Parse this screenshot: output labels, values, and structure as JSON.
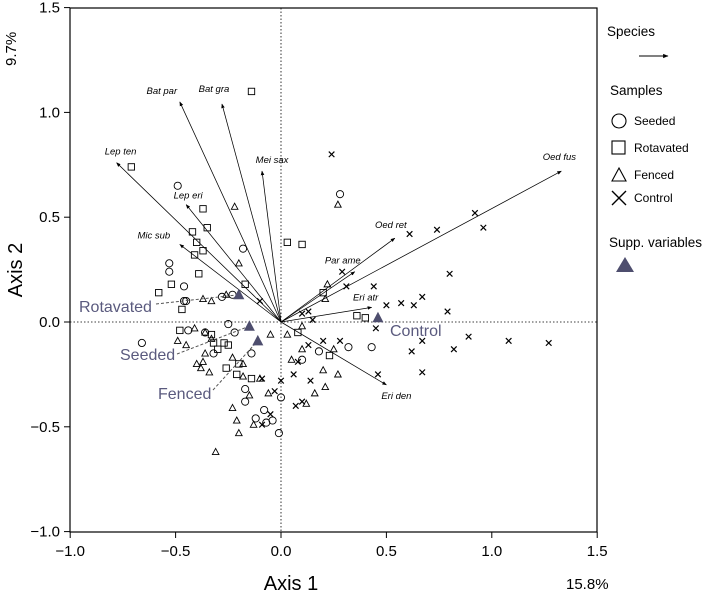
{
  "chart_data": {
    "type": "scatter",
    "subtype": "ordination-biplot",
    "xlabel": "Axis 1",
    "ylabel": "Axis 2",
    "x_variance": "15.8%",
    "y_variance": "9.7%",
    "xlim": [
      -1.0,
      1.5
    ],
    "ylim": [
      -1.0,
      1.5
    ],
    "xticks": [
      -1.0,
      -0.5,
      0.0,
      0.5,
      1.0,
      1.5
    ],
    "yticks": [
      -1.0,
      -0.5,
      0.0,
      0.5,
      1.0,
      1.5
    ],
    "xtick_labels": [
      "−1.0",
      "−0.5",
      "0.0",
      "0.5",
      "1.0",
      "1.5"
    ],
    "ytick_labels": [
      "−1.0",
      "−0.5",
      "0.0",
      "0.5",
      "1.0",
      "1.5"
    ],
    "legend": {
      "species_title": "Species",
      "samples_title": "Samples",
      "supp_title": "Supp. variables",
      "entries": [
        {
          "label": "Seeded",
          "marker": "circle"
        },
        {
          "label": "Rotavated",
          "marker": "square"
        },
        {
          "label": "Fenced",
          "marker": "triangle"
        },
        {
          "label": "Control",
          "marker": "cross"
        }
      ]
    },
    "species": [
      {
        "name": "Bat par",
        "x": -0.48,
        "y": 1.05
      },
      {
        "name": "Bat gra",
        "x": -0.28,
        "y": 1.04
      },
      {
        "name": "Lep ten",
        "x": -0.78,
        "y": 0.76
      },
      {
        "name": "Mei sax",
        "x": -0.09,
        "y": 0.72
      },
      {
        "name": "Oed fus",
        "x": 1.33,
        "y": 0.72
      },
      {
        "name": "Lep eri",
        "x": -0.45,
        "y": 0.56
      },
      {
        "name": "Mic sub",
        "x": -0.48,
        "y": 0.37
      },
      {
        "name": "Oed ret",
        "x": 0.54,
        "y": 0.4
      },
      {
        "name": "Par ame",
        "x": 0.35,
        "y": 0.24
      },
      {
        "name": "Eri atr",
        "x": 0.43,
        "y": 0.07
      },
      {
        "name": "Eri den",
        "x": 0.5,
        "y": -0.3
      }
    ],
    "supplementary": [
      {
        "name": "Rotavated",
        "x": -0.2,
        "y": 0.13
      },
      {
        "name": "Control",
        "x": 0.46,
        "y": 0.02
      },
      {
        "name": "Seeded",
        "x": -0.15,
        "y": -0.02
      },
      {
        "name": "Fenced",
        "x": -0.11,
        "y": -0.09
      }
    ],
    "samples": {
      "seeded": [
        [
          -0.49,
          0.65
        ],
        [
          -0.53,
          0.28
        ],
        [
          -0.53,
          0.24
        ],
        [
          -0.46,
          0.17
        ],
        [
          -0.45,
          0.1
        ],
        [
          -0.46,
          0.1
        ],
        [
          -0.28,
          0.12
        ],
        [
          -0.23,
          0.13
        ],
        [
          -0.66,
          -0.1
        ],
        [
          -0.44,
          -0.04
        ],
        [
          -0.36,
          -0.05
        ],
        [
          -0.32,
          -0.15
        ],
        [
          -0.25,
          -0.01
        ],
        [
          -0.22,
          -0.05
        ],
        [
          -0.14,
          -0.15
        ],
        [
          -0.17,
          -0.32
        ],
        [
          -0.17,
          -0.38
        ],
        [
          -0.12,
          -0.46
        ],
        [
          -0.08,
          -0.42
        ],
        [
          -0.07,
          -0.48
        ],
        [
          0.0,
          -0.36
        ],
        [
          -0.04,
          -0.47
        ],
        [
          -0.01,
          -0.53
        ],
        [
          0.1,
          -0.18
        ],
        [
          0.18,
          -0.14
        ],
        [
          0.32,
          -0.12
        ],
        [
          0.43,
          -0.12
        ],
        [
          0.28,
          0.61
        ],
        [
          -0.18,
          0.35
        ]
      ],
      "rotavated": [
        [
          -0.71,
          0.74
        ],
        [
          -0.14,
          1.1
        ],
        [
          -0.37,
          0.54
        ],
        [
          -0.35,
          0.45
        ],
        [
          -0.42,
          0.43
        ],
        [
          -0.4,
          0.38
        ],
        [
          -0.37,
          0.34
        ],
        [
          -0.41,
          0.32
        ],
        [
          -0.39,
          0.23
        ],
        [
          -0.52,
          0.18
        ],
        [
          -0.58,
          0.14
        ],
        [
          -0.47,
          0.06
        ],
        [
          -0.48,
          -0.04
        ],
        [
          -0.33,
          -0.06
        ],
        [
          -0.32,
          -0.1
        ],
        [
          -0.27,
          -0.1
        ],
        [
          -0.25,
          -0.11
        ],
        [
          -0.3,
          -0.13
        ],
        [
          -0.2,
          -0.2
        ],
        [
          -0.26,
          -0.22
        ],
        [
          -0.21,
          -0.25
        ],
        [
          -0.14,
          -0.27
        ],
        [
          -0.17,
          0.18
        ],
        [
          0.03,
          0.38
        ],
        [
          0.1,
          0.37
        ],
        [
          0.2,
          0.14
        ],
        [
          0.36,
          0.03
        ],
        [
          0.4,
          0.02
        ],
        [
          0.23,
          -0.16
        ],
        [
          0.08,
          -0.05
        ]
      ],
      "fenced": [
        [
          -0.22,
          0.55
        ],
        [
          -0.33,
          0.1
        ],
        [
          -0.37,
          0.11
        ],
        [
          -0.33,
          -0.08
        ],
        [
          -0.36,
          -0.15
        ],
        [
          -0.37,
          -0.19
        ],
        [
          -0.4,
          -0.2
        ],
        [
          -0.34,
          -0.24
        ],
        [
          -0.38,
          -0.22
        ],
        [
          -0.45,
          -0.11
        ],
        [
          -0.49,
          -0.09
        ],
        [
          -0.36,
          -0.05
        ],
        [
          -0.41,
          -0.03
        ],
        [
          -0.23,
          -0.17
        ],
        [
          -0.18,
          -0.2
        ],
        [
          -0.15,
          -0.35
        ],
        [
          -0.1,
          -0.27
        ],
        [
          -0.18,
          -0.26
        ],
        [
          -0.13,
          -0.49
        ],
        [
          -0.06,
          -0.34
        ],
        [
          -0.23,
          -0.41
        ],
        [
          -0.21,
          -0.47
        ],
        [
          -0.2,
          -0.53
        ],
        [
          -0.31,
          -0.62
        ],
        [
          0.05,
          -0.18
        ],
        [
          0.03,
          -0.06
        ],
        [
          0.1,
          -0.13
        ],
        [
          0.2,
          -0.23
        ],
        [
          0.21,
          -0.31
        ],
        [
          0.27,
          -0.25
        ],
        [
          0.25,
          -0.13
        ],
        [
          0.12,
          -0.39
        ],
        [
          0.16,
          -0.34
        ],
        [
          0.21,
          0.11
        ],
        [
          0.22,
          0.18
        ],
        [
          0.27,
          0.56
        ],
        [
          -0.2,
          0.28
        ],
        [
          -0.26,
          0.13
        ],
        [
          0.1,
          -0.02
        ],
        [
          -0.05,
          -0.06
        ]
      ],
      "control": [
        [
          0.24,
          0.8
        ],
        [
          0.92,
          0.52
        ],
        [
          0.96,
          0.45
        ],
        [
          0.61,
          0.42
        ],
        [
          0.74,
          0.44
        ],
        [
          0.29,
          0.24
        ],
        [
          0.31,
          0.17
        ],
        [
          0.8,
          0.23
        ],
        [
          0.44,
          0.17
        ],
        [
          0.5,
          0.08
        ],
        [
          0.57,
          0.09
        ],
        [
          0.67,
          0.12
        ],
        [
          0.63,
          0.08
        ],
        [
          0.79,
          0.05
        ],
        [
          0.45,
          -0.03
        ],
        [
          0.67,
          -0.09
        ],
        [
          0.89,
          -0.07
        ],
        [
          1.08,
          -0.09
        ],
        [
          1.27,
          -0.1
        ],
        [
          0.82,
          -0.13
        ],
        [
          0.62,
          -0.14
        ],
        [
          0.67,
          -0.24
        ],
        [
          0.46,
          -0.25
        ],
        [
          0.28,
          -0.09
        ],
        [
          0.15,
          0.01
        ],
        [
          0.2,
          -0.09
        ],
        [
          0.13,
          -0.11
        ],
        [
          0.08,
          -0.19
        ],
        [
          0.06,
          -0.25
        ],
        [
          0.14,
          -0.28
        ],
        [
          0.0,
          -0.28
        ],
        [
          -0.09,
          -0.49
        ],
        [
          -0.05,
          -0.44
        ],
        [
          0.07,
          -0.4
        ],
        [
          -0.09,
          -0.27
        ],
        [
          -0.03,
          -0.33
        ],
        [
          0.1,
          -0.38
        ],
        [
          0.1,
          0.04
        ],
        [
          0.13,
          0.05
        ],
        [
          -0.1,
          0.1
        ]
      ]
    }
  }
}
